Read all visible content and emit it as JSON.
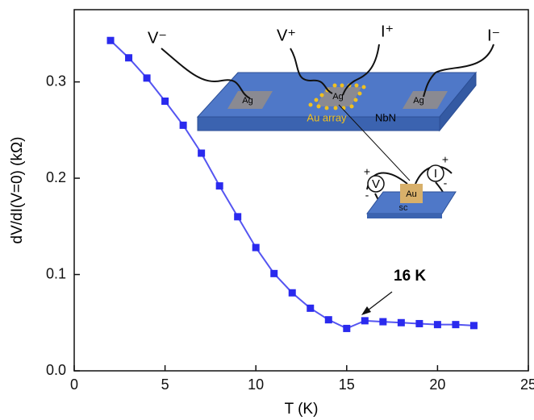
{
  "chart_data": {
    "type": "line",
    "x_label": "T (K)",
    "y_label": "dV/dI(V=0) (kΩ)",
    "x": [
      2,
      3,
      4,
      5,
      6,
      7,
      8,
      9,
      10,
      11,
      12,
      13,
      14,
      15,
      16,
      17,
      18,
      19,
      20,
      21,
      22
    ],
    "series": [
      {
        "color": "#2a2aee",
        "values": [
          0.343,
          0.325,
          0.304,
          0.28,
          0.255,
          0.226,
          0.192,
          0.16,
          0.128,
          0.101,
          0.081,
          0.065,
          0.053,
          0.044,
          0.052,
          0.051,
          0.05,
          0.049,
          0.048,
          0.048,
          0.047
        ]
      }
    ],
    "xlim": [
      0,
      25
    ],
    "ylim": [
      0,
      0.375
    ],
    "xticks": [
      0,
      5,
      10,
      15,
      20,
      25
    ],
    "yticks": [
      {
        "value": 0,
        "label": "0.0"
      },
      0.1,
      0.2,
      0.3
    ],
    "annotation": "16 K"
  },
  "inset": {
    "leads": [
      "V⁻",
      "V⁺",
      "I⁺",
      "I⁻"
    ],
    "pads": [
      "Ag",
      "Ag",
      "Ag"
    ],
    "array": "Au array",
    "film": "NbN",
    "small": {
      "tip": "Au",
      "substrate": "sc",
      "meters": [
        "V",
        "I"
      ],
      "signs": [
        "+",
        "-",
        "+",
        "-"
      ]
    }
  }
}
